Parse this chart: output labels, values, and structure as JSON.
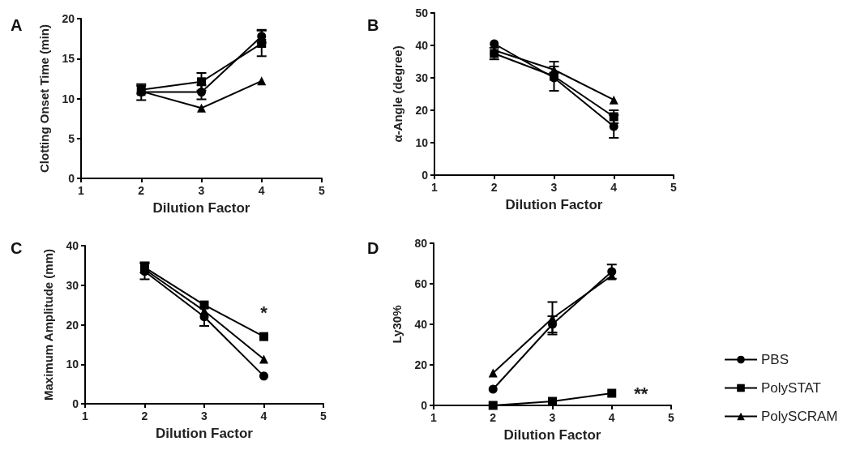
{
  "chart_data": [
    {
      "type": "line",
      "title": "A",
      "xlabel": "Dilution Factor",
      "ylabel": "Clotting Onset Time (min)",
      "x": [
        2,
        3,
        4
      ],
      "xlim": [
        1,
        5
      ],
      "xticks": [
        1,
        2,
        3,
        4,
        5
      ],
      "ylim": [
        0,
        20
      ],
      "yticks": [
        0,
        5,
        10,
        15,
        20
      ],
      "grid": false,
      "series": [
        {
          "color": "#000000",
          "marker": "circle",
          "values": [
            10.8,
            10.8,
            17.8
          ],
          "errors": [
            1.0,
            0.9,
            0.8
          ]
        },
        {
          "color": "#000000",
          "marker": "square",
          "values": [
            11.1,
            12.1,
            16.9
          ],
          "errors": [
            0.5,
            1.1,
            1.6
          ]
        },
        {
          "color": "#000000",
          "marker": "triangle",
          "values": [
            10.9,
            8.8,
            12.2
          ]
        }
      ]
    },
    {
      "type": "line",
      "title": "B",
      "xlabel": "Dilution Factor",
      "ylabel": "α-Angle (degree)",
      "x": [
        2,
        3,
        4
      ],
      "xlim": [
        1,
        5
      ],
      "xticks": [
        1,
        2,
        3,
        4,
        5
      ],
      "ylim": [
        0,
        50
      ],
      "yticks": [
        0,
        10,
        20,
        30,
        40,
        50
      ],
      "grid": false,
      "series": [
        {
          "color": "#000000",
          "marker": "circle",
          "values": [
            40.5,
            30,
            15
          ],
          "errors": [
            null,
            null,
            3.5
          ]
        },
        {
          "color": "#000000",
          "marker": "square",
          "values": [
            37.5,
            30.5,
            18
          ],
          "errors": [
            1.8,
            4.5,
            2
          ]
        },
        {
          "color": "#000000",
          "marker": "triangle",
          "values": [
            38.5,
            32.5,
            23.2
          ],
          "errors": [
            null,
            1,
            null
          ]
        }
      ]
    },
    {
      "type": "line",
      "title": "C",
      "xlabel": "Dilution Factor",
      "ylabel": "Maximum Amplitude (mm)",
      "x": [
        2,
        3,
        4
      ],
      "xlim": [
        1,
        5
      ],
      "xticks": [
        1,
        2,
        3,
        4,
        5
      ],
      "ylim": [
        0,
        40
      ],
      "yticks": [
        0,
        10,
        20,
        30,
        40
      ],
      "grid": false,
      "annotations": [
        "*"
      ],
      "series": [
        {
          "color": "#000000",
          "marker": "circle",
          "values": [
            33.5,
            22,
            7
          ],
          "errors": [
            2,
            2.3,
            null
          ]
        },
        {
          "color": "#000000",
          "marker": "square",
          "values": [
            34.5,
            25,
            17
          ],
          "errors": [
            1.3,
            null,
            null
          ]
        },
        {
          "color": "#000000",
          "marker": "triangle",
          "values": [
            34,
            23.5,
            11.3
          ]
        }
      ]
    },
    {
      "type": "line",
      "title": "D",
      "xlabel": "Dilution Factor",
      "ylabel": "Ly30%",
      "x": [
        2,
        3,
        4
      ],
      "xlim": [
        1,
        5
      ],
      "xticks": [
        1,
        2,
        3,
        4,
        5
      ],
      "ylim": [
        0,
        80
      ],
      "yticks": [
        0,
        20,
        40,
        60,
        80
      ],
      "grid": false,
      "legend": "right",
      "annotations": [
        "**"
      ],
      "series": [
        {
          "name": "PBS",
          "color": "#000000",
          "marker": "circle",
          "values": [
            8,
            40,
            66
          ],
          "errors": [
            null,
            4,
            3.5
          ]
        },
        {
          "name": "PolySTAT",
          "color": "#000000",
          "marker": "square",
          "values": [
            0,
            2,
            6
          ]
        },
        {
          "name": "PolySCRAM",
          "color": "#000000",
          "marker": "triangle",
          "values": [
            16,
            43,
            64
          ],
          "errors": [
            null,
            8,
            null
          ]
        }
      ]
    }
  ]
}
